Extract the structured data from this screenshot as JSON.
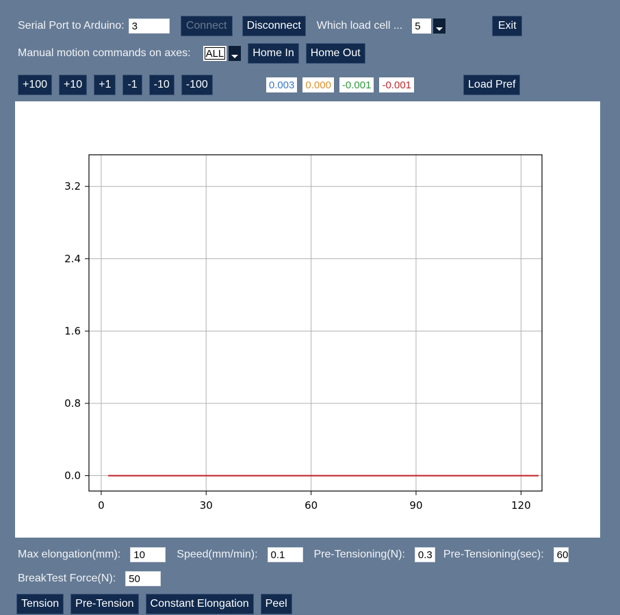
{
  "connection": {
    "serial_label": "Serial Port to Arduino:",
    "serial_value": "3",
    "connect_label": "Connect",
    "disconnect_label": "Disconnect",
    "loadcell_label": "Which load cell ...",
    "loadcell_value": "5",
    "exit_label": "Exit"
  },
  "manual": {
    "label": "Manual motion commands on axes:",
    "axes_value": "ALL",
    "home_in_label": "Home In",
    "home_out_label": "Home Out"
  },
  "jog": {
    "buttons": [
      "+100",
      "+10",
      "+1",
      "-1",
      "-10",
      "-100"
    ],
    "readouts": [
      {
        "value": "0.003",
        "color": "#3a78c9"
      },
      {
        "value": "0.000",
        "color": "#e0902a"
      },
      {
        "value": "-0.001",
        "color": "#2e9b3a"
      },
      {
        "value": "-0.001",
        "color": "#c2272d"
      }
    ],
    "load_pref_label": "Load Pref"
  },
  "chart_data": {
    "type": "line",
    "x_ticks": [
      "0",
      "30",
      "60",
      "90",
      "120"
    ],
    "y_ticks": [
      "0.0",
      "0.8",
      "1.6",
      "2.4",
      "3.2"
    ],
    "xlim": [
      -3.5,
      126
    ],
    "ylim": [
      -0.17,
      3.55
    ],
    "grid": true,
    "series": [
      {
        "color": "#c2272d",
        "x": [
          2,
          125
        ],
        "y": [
          0,
          0
        ]
      }
    ]
  },
  "params": {
    "max_elong_label": "Max elongation(mm):",
    "max_elong_value": "10",
    "speed_label": "Speed(mm/min):",
    "speed_value": "0.1",
    "pretension_label": "Pre-Tensioning(N):",
    "pretension_value": "0.3",
    "pretension_sec_label": "Pre-Tensioning(sec):",
    "pretension_sec_value": "60",
    "breaktest_label": "BreakTest Force(N):",
    "breaktest_value": "50"
  },
  "modes": {
    "tension_label": "Tension",
    "pretension_label": "Pre-Tension",
    "const_elong_label": "Constant Elongation",
    "peel_label": "Peel"
  }
}
